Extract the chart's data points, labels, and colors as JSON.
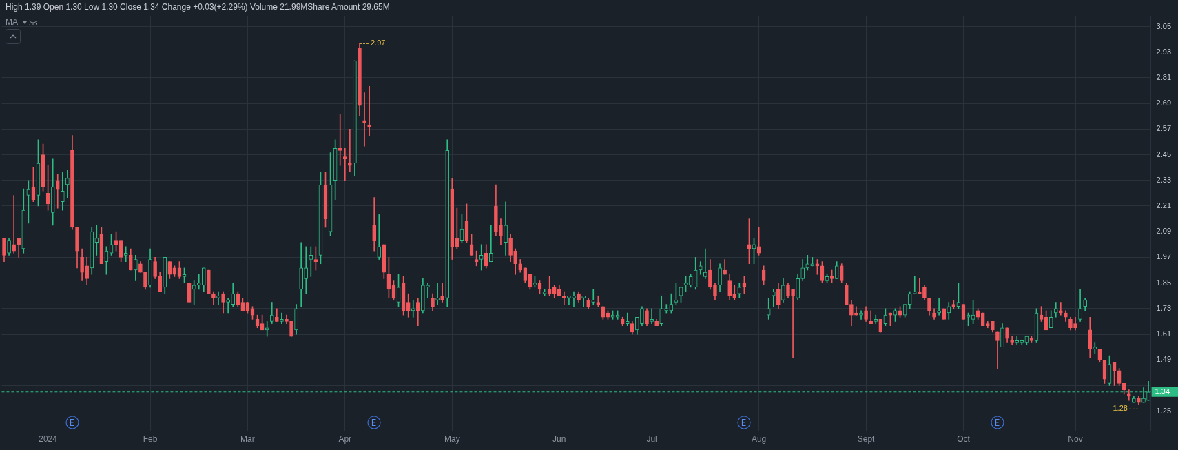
{
  "chart_data": {
    "type": "candlestick",
    "categories": [
      null,
      null,
      null,
      null,
      null,
      null,
      null,
      null,
      null,
      "2024",
      null,
      null,
      null,
      null,
      null,
      null,
      null,
      null,
      null,
      null,
      null,
      null,
      null,
      null,
      null,
      null,
      null,
      null,
      null,
      null,
      "Feb",
      null,
      null,
      null,
      null,
      null,
      null,
      null,
      null,
      null,
      null,
      null,
      null,
      null,
      null,
      null,
      null,
      null,
      null,
      null,
      "Mar",
      null,
      null,
      null,
      null,
      null,
      null,
      null,
      null,
      null,
      null,
      null,
      null,
      null,
      null,
      null,
      null,
      null,
      null,
      null,
      "Apr",
      null,
      null,
      null,
      null,
      null,
      null,
      null,
      null,
      null,
      null,
      null,
      null,
      null,
      null,
      null,
      null,
      null,
      null,
      null,
      null,
      null,
      "May",
      null,
      null,
      null,
      null,
      null,
      null,
      null,
      null,
      null,
      null,
      null,
      null,
      null,
      null,
      null,
      null,
      null,
      null,
      null,
      null,
      null,
      "Jun",
      null,
      null,
      null,
      null,
      null,
      null,
      null,
      null,
      null,
      null,
      null,
      null,
      null,
      null,
      null,
      null,
      null,
      null,
      "Jul",
      null,
      null,
      null,
      null,
      null,
      null,
      null,
      null,
      null,
      null,
      null,
      null,
      null,
      null,
      null,
      null,
      null,
      null,
      null,
      null,
      null,
      "Aug",
      null,
      null,
      null,
      null,
      null,
      null,
      null,
      null,
      null,
      null,
      null,
      null,
      null,
      null,
      null,
      null,
      null,
      null,
      null,
      null,
      null,
      "Sept",
      null,
      null,
      null,
      null,
      null,
      null,
      null,
      null,
      null,
      null,
      null,
      null,
      null,
      null,
      null,
      null,
      null,
      null,
      null,
      "Oct",
      null,
      null,
      null,
      null,
      null,
      null,
      null,
      null,
      null,
      null,
      null,
      null,
      null,
      null,
      null,
      null,
      null,
      null,
      null,
      null,
      null,
      null,
      "Nov",
      null,
      null,
      null,
      null,
      null,
      null,
      null,
      null,
      null,
      null,
      null,
      null,
      null,
      null,
      null
    ],
    "ohlc": [
      [
        2.06,
        2.06,
        1.95,
        1.98
      ],
      [
        1.99,
        2.06,
        1.98,
        2.05
      ],
      [
        2.03,
        2.26,
        1.99,
        2.0
      ],
      [
        2.06,
        2.06,
        1.97,
        2.03
      ],
      [
        2.01,
        2.29,
        1.99,
        2.19
      ],
      [
        2.26,
        2.33,
        2.13,
        2.29
      ],
      [
        2.3,
        2.39,
        2.23,
        2.24
      ],
      [
        2.26,
        2.52,
        2.21,
        2.41
      ],
      [
        2.45,
        2.5,
        2.28,
        2.3
      ],
      [
        2.27,
        2.4,
        2.19,
        2.22
      ],
      [
        2.18,
        2.43,
        2.12,
        2.3
      ],
      [
        2.33,
        2.36,
        2.2,
        2.29
      ],
      [
        2.23,
        2.37,
        2.19,
        2.28
      ],
      [
        2.31,
        2.38,
        2.25,
        2.34
      ],
      [
        2.47,
        2.54,
        2.1,
        2.11
      ],
      [
        2.11,
        2.11,
        1.92,
        2.0
      ],
      [
        1.97,
        2.01,
        1.86,
        1.9
      ],
      [
        1.93,
        1.97,
        1.84,
        1.87
      ],
      [
        1.92,
        2.11,
        1.89,
        2.09
      ],
      [
        2.04,
        2.12,
        1.98,
        2.06
      ],
      [
        2.08,
        2.11,
        1.94,
        1.94
      ],
      [
        1.95,
        2.02,
        1.89,
        2.0
      ],
      [
        1.99,
        2.08,
        1.98,
        2.03
      ],
      [
        2.05,
        2.09,
        2.0,
        2.03
      ],
      [
        2.05,
        2.05,
        1.95,
        1.97
      ],
      [
        1.98,
        2.02,
        1.95,
        1.99
      ],
      [
        1.98,
        2.01,
        1.91,
        1.91
      ],
      [
        1.91,
        1.98,
        1.86,
        1.96
      ],
      [
        1.94,
        1.95,
        1.9,
        1.9
      ],
      [
        1.9,
        1.9,
        1.82,
        1.83
      ],
      [
        1.84,
        2.01,
        1.83,
        1.96
      ],
      [
        1.95,
        1.97,
        1.87,
        1.88
      ],
      [
        1.88,
        1.9,
        1.81,
        1.81
      ],
      [
        1.83,
        1.97,
        1.8,
        1.97
      ],
      [
        1.95,
        1.95,
        1.87,
        1.89
      ],
      [
        1.92,
        1.93,
        1.88,
        1.89
      ],
      [
        1.92,
        1.95,
        1.87,
        1.88
      ],
      [
        1.88,
        1.92,
        1.85,
        1.89
      ],
      [
        1.85,
        1.85,
        1.76,
        1.76
      ],
      [
        1.82,
        1.86,
        1.75,
        1.84
      ],
      [
        1.84,
        1.89,
        1.82,
        1.85
      ],
      [
        1.84,
        1.92,
        1.81,
        1.92
      ],
      [
        1.91,
        1.91,
        1.8,
        1.8
      ],
      [
        1.8,
        1.81,
        1.75,
        1.78
      ],
      [
        1.78,
        1.81,
        1.75,
        1.79
      ],
      [
        1.8,
        1.81,
        1.71,
        1.76
      ],
      [
        1.76,
        1.78,
        1.71,
        1.77
      ],
      [
        1.75,
        1.85,
        1.74,
        1.8
      ],
      [
        1.8,
        1.81,
        1.74,
        1.75
      ],
      [
        1.76,
        1.78,
        1.72,
        1.72
      ],
      [
        1.76,
        1.76,
        1.71,
        1.72
      ],
      [
        1.73,
        1.74,
        1.68,
        1.7
      ],
      [
        1.68,
        1.7,
        1.64,
        1.65
      ],
      [
        1.66,
        1.7,
        1.63,
        1.63
      ],
      [
        1.63,
        1.67,
        1.6,
        1.64
      ],
      [
        1.67,
        1.76,
        1.66,
        1.7
      ],
      [
        1.69,
        1.73,
        1.67,
        1.67
      ],
      [
        1.67,
        1.71,
        1.66,
        1.68
      ],
      [
        1.68,
        1.7,
        1.66,
        1.67
      ],
      [
        1.67,
        1.67,
        1.6,
        1.6
      ],
      [
        1.63,
        1.75,
        1.61,
        1.73
      ],
      [
        1.82,
        2.04,
        1.74,
        1.92
      ],
      [
        1.87,
        2.02,
        1.8,
        1.92
      ],
      [
        1.96,
        2.02,
        1.88,
        1.98
      ],
      [
        1.96,
        2.02,
        1.91,
        1.95
      ],
      [
        1.98,
        2.37,
        1.94,
        2.31
      ],
      [
        2.31,
        2.37,
        2.11,
        2.15
      ],
      [
        2.09,
        2.46,
        2.07,
        2.31
      ],
      [
        2.33,
        2.52,
        2.24,
        2.48
      ],
      [
        2.48,
        2.64,
        2.4,
        2.47
      ],
      [
        2.44,
        2.48,
        2.33,
        2.43
      ],
      [
        2.41,
        2.57,
        2.37,
        2.4
      ],
      [
        2.41,
        2.89,
        2.35,
        2.89
      ],
      [
        2.95,
        2.97,
        2.63,
        2.68
      ],
      [
        2.61,
        2.74,
        2.49,
        2.6
      ],
      [
        2.59,
        2.77,
        2.54,
        2.58
      ],
      [
        2.12,
        2.25,
        2.0,
        2.05
      ],
      [
        1.97,
        2.17,
        1.96,
        2.02
      ],
      [
        2.03,
        2.03,
        1.87,
        1.9
      ],
      [
        1.89,
        1.97,
        1.78,
        1.82
      ],
      [
        1.84,
        1.86,
        1.77,
        1.78
      ],
      [
        1.76,
        1.89,
        1.74,
        1.83
      ],
      [
        1.85,
        1.88,
        1.7,
        1.72
      ],
      [
        1.76,
        1.8,
        1.69,
        1.72
      ],
      [
        1.72,
        1.77,
        1.69,
        1.73
      ],
      [
        1.76,
        1.78,
        1.65,
        1.72
      ],
      [
        1.72,
        1.87,
        1.71,
        1.84
      ],
      [
        1.83,
        1.85,
        1.78,
        1.84
      ],
      [
        1.78,
        1.8,
        1.72,
        1.74
      ],
      [
        1.77,
        1.85,
        1.75,
        1.78
      ],
      [
        1.79,
        1.85,
        1.76,
        1.77
      ],
      [
        1.78,
        2.52,
        1.74,
        2.47
      ],
      [
        2.29,
        2.34,
        1.96,
        2.02
      ],
      [
        2.06,
        2.2,
        2.01,
        2.02
      ],
      [
        2.05,
        2.17,
        2.04,
        2.1
      ],
      [
        2.14,
        2.22,
        2.04,
        2.05
      ],
      [
        2.03,
        2.08,
        1.98,
        1.98
      ],
      [
        1.96,
        2.0,
        1.93,
        1.95
      ],
      [
        1.96,
        2.03,
        1.91,
        1.98
      ],
      [
        1.99,
        2.03,
        1.92,
        1.93
      ],
      [
        1.95,
        2.12,
        1.95,
        1.99
      ],
      [
        2.21,
        2.31,
        2.07,
        2.09
      ],
      [
        2.12,
        2.15,
        2.03,
        2.07
      ],
      [
        2.04,
        2.23,
        1.98,
        2.12
      ],
      [
        2.06,
        2.08,
        1.95,
        1.98
      ],
      [
        2.0,
        2.01,
        1.89,
        1.94
      ],
      [
        1.94,
        1.96,
        1.9,
        1.91
      ],
      [
        1.92,
        1.92,
        1.85,
        1.86
      ],
      [
        1.89,
        1.89,
        1.82,
        1.83
      ],
      [
        1.84,
        1.88,
        1.83,
        1.85
      ],
      [
        1.85,
        1.86,
        1.8,
        1.82
      ],
      [
        1.8,
        1.82,
        1.79,
        1.81
      ],
      [
        1.82,
        1.88,
        1.79,
        1.8
      ],
      [
        1.83,
        1.84,
        1.78,
        1.8
      ],
      [
        1.82,
        1.84,
        1.79,
        1.79
      ],
      [
        1.79,
        1.81,
        1.75,
        1.78
      ],
      [
        1.78,
        1.79,
        1.75,
        1.79
      ],
      [
        1.78,
        1.81,
        1.74,
        1.79
      ],
      [
        1.8,
        1.81,
        1.76,
        1.77
      ],
      [
        1.78,
        1.79,
        1.74,
        1.79
      ],
      [
        1.77,
        1.78,
        1.73,
        1.74
      ],
      [
        1.76,
        1.82,
        1.75,
        1.77
      ],
      [
        1.76,
        1.79,
        1.74,
        1.75
      ],
      [
        1.74,
        1.74,
        1.68,
        1.69
      ],
      [
        1.71,
        1.72,
        1.68,
        1.69
      ],
      [
        1.69,
        1.72,
        1.68,
        1.7
      ],
      [
        1.69,
        1.72,
        1.68,
        1.7
      ],
      [
        1.68,
        1.69,
        1.65,
        1.66
      ],
      [
        1.66,
        1.71,
        1.65,
        1.67
      ],
      [
        1.66,
        1.67,
        1.61,
        1.62
      ],
      [
        1.63,
        1.69,
        1.61,
        1.69
      ],
      [
        1.66,
        1.74,
        1.65,
        1.73
      ],
      [
        1.72,
        1.73,
        1.65,
        1.66
      ],
      [
        1.67,
        1.73,
        1.66,
        1.68
      ],
      [
        1.67,
        1.68,
        1.65,
        1.65
      ],
      [
        1.66,
        1.79,
        1.65,
        1.73
      ],
      [
        1.72,
        1.75,
        1.71,
        1.73
      ],
      [
        1.72,
        1.8,
        1.71,
        1.75
      ],
      [
        1.76,
        1.85,
        1.75,
        1.77
      ],
      [
        1.79,
        1.83,
        1.76,
        1.83
      ],
      [
        1.84,
        1.88,
        1.81,
        1.85
      ],
      [
        1.84,
        1.89,
        1.83,
        1.88
      ],
      [
        1.83,
        1.97,
        1.82,
        1.91
      ],
      [
        1.91,
        1.95,
        1.89,
        1.93
      ],
      [
        1.88,
        2.01,
        1.87,
        1.9
      ],
      [
        1.91,
        1.96,
        1.82,
        1.83
      ],
      [
        1.84,
        1.85,
        1.77,
        1.79
      ],
      [
        1.84,
        1.94,
        1.81,
        1.92
      ],
      [
        1.91,
        1.96,
        1.89,
        1.89
      ],
      [
        1.86,
        1.89,
        1.77,
        1.79
      ],
      [
        1.8,
        1.84,
        1.77,
        1.78
      ],
      [
        1.8,
        1.85,
        1.78,
        1.83
      ],
      [
        1.85,
        1.88,
        1.8,
        1.83
      ],
      [
        2.03,
        2.15,
        1.94,
        2.01
      ],
      [
        2.01,
        2.06,
        1.94,
        2.03
      ],
      [
        2.02,
        2.11,
        1.98,
        1.99
      ],
      [
        1.91,
        1.93,
        1.84,
        1.86
      ],
      [
        1.7,
        1.78,
        1.68,
        1.73
      ],
      [
        1.79,
        1.82,
        1.74,
        1.81
      ],
      [
        1.82,
        1.85,
        1.73,
        1.75
      ],
      [
        1.77,
        1.87,
        1.76,
        1.84
      ],
      [
        1.84,
        1.85,
        1.78,
        1.79
      ],
      [
        1.82,
        1.82,
        1.5,
        1.79
      ],
      [
        1.78,
        1.89,
        1.77,
        1.87
      ],
      [
        1.87,
        1.96,
        1.86,
        1.92
      ],
      [
        1.92,
        1.98,
        1.91,
        1.94
      ],
      [
        1.93,
        1.97,
        1.93,
        1.94
      ],
      [
        1.94,
        1.96,
        1.89,
        1.93
      ],
      [
        1.93,
        1.95,
        1.85,
        1.86
      ],
      [
        1.86,
        1.89,
        1.85,
        1.88
      ],
      [
        1.88,
        1.91,
        1.85,
        1.87
      ],
      [
        1.87,
        1.95,
        1.87,
        1.93
      ],
      [
        1.93,
        1.94,
        1.85,
        1.86
      ],
      [
        1.84,
        1.85,
        1.75,
        1.75
      ],
      [
        1.75,
        1.77,
        1.65,
        1.7
      ],
      [
        1.71,
        1.74,
        1.7,
        1.7
      ],
      [
        1.7,
        1.72,
        1.68,
        1.71
      ],
      [
        1.72,
        1.74,
        1.67,
        1.68
      ],
      [
        1.67,
        1.72,
        1.66,
        1.66
      ],
      [
        1.67,
        1.7,
        1.66,
        1.68
      ],
      [
        1.68,
        1.68,
        1.62,
        1.62
      ],
      [
        1.66,
        1.73,
        1.65,
        1.7
      ],
      [
        1.71,
        1.71,
        1.65,
        1.7
      ],
      [
        1.7,
        1.73,
        1.67,
        1.72
      ],
      [
        1.72,
        1.74,
        1.69,
        1.7
      ],
      [
        1.7,
        1.75,
        1.69,
        1.75
      ],
      [
        1.75,
        1.81,
        1.73,
        1.8
      ],
      [
        1.8,
        1.88,
        1.8,
        1.81
      ],
      [
        1.81,
        1.87,
        1.8,
        1.8
      ],
      [
        1.83,
        1.84,
        1.77,
        1.78
      ],
      [
        1.78,
        1.78,
        1.7,
        1.72
      ],
      [
        1.71,
        1.73,
        1.68,
        1.69
      ],
      [
        1.71,
        1.78,
        1.7,
        1.72
      ],
      [
        1.73,
        1.73,
        1.68,
        1.68
      ],
      [
        1.71,
        1.76,
        1.68,
        1.74
      ],
      [
        1.75,
        1.77,
        1.73,
        1.74
      ],
      [
        1.74,
        1.85,
        1.73,
        1.76
      ],
      [
        1.75,
        1.75,
        1.68,
        1.68
      ],
      [
        1.69,
        1.71,
        1.65,
        1.7
      ],
      [
        1.68,
        1.77,
        1.66,
        1.7
      ],
      [
        1.72,
        1.73,
        1.68,
        1.69
      ],
      [
        1.71,
        1.71,
        1.65,
        1.65
      ],
      [
        1.66,
        1.67,
        1.64,
        1.65
      ],
      [
        1.67,
        1.67,
        1.62,
        1.63
      ],
      [
        1.62,
        1.62,
        1.45,
        1.58
      ],
      [
        1.55,
        1.66,
        1.55,
        1.64
      ],
      [
        1.64,
        1.64,
        1.57,
        1.59
      ],
      [
        1.58,
        1.6,
        1.56,
        1.57
      ],
      [
        1.57,
        1.6,
        1.56,
        1.58
      ],
      [
        1.57,
        1.58,
        1.56,
        1.58
      ],
      [
        1.57,
        1.6,
        1.56,
        1.6
      ],
      [
        1.59,
        1.6,
        1.57,
        1.58
      ],
      [
        1.58,
        1.73,
        1.57,
        1.71
      ],
      [
        1.7,
        1.74,
        1.67,
        1.68
      ],
      [
        1.69,
        1.72,
        1.63,
        1.63
      ],
      [
        1.64,
        1.72,
        1.64,
        1.69
      ],
      [
        1.71,
        1.76,
        1.69,
        1.73
      ],
      [
        1.72,
        1.76,
        1.7,
        1.71
      ],
      [
        1.71,
        1.72,
        1.67,
        1.69
      ],
      [
        1.68,
        1.69,
        1.63,
        1.64
      ],
      [
        1.66,
        1.69,
        1.63,
        1.64
      ],
      [
        1.68,
        1.82,
        1.67,
        1.73
      ],
      [
        1.74,
        1.78,
        1.72,
        1.77
      ],
      [
        1.63,
        1.69,
        1.5,
        1.54
      ],
      [
        1.54,
        1.57,
        1.52,
        1.55
      ],
      [
        1.54,
        1.54,
        1.48,
        1.49
      ],
      [
        1.49,
        1.49,
        1.38,
        1.4
      ],
      [
        1.38,
        1.51,
        1.37,
        1.47
      ],
      [
        1.48,
        1.48,
        1.37,
        1.44
      ],
      [
        1.44,
        1.45,
        1.37,
        1.38
      ],
      [
        1.38,
        1.38,
        1.33,
        1.35
      ],
      [
        1.33,
        1.35,
        1.3,
        1.32
      ],
      [
        1.29,
        1.32,
        1.29,
        1.31
      ],
      [
        1.31,
        1.32,
        1.28,
        1.29
      ],
      [
        1.29,
        1.36,
        1.29,
        1.31
      ],
      [
        1.3,
        1.39,
        1.3,
        1.34
      ]
    ],
    "colors": [
      "#f0585c",
      "#2ebd85",
      "#f0585c",
      "#f0585c",
      "#2ebd85",
      "#2ebd85",
      "#f0585c",
      "#2ebd85",
      "#f0585c",
      "#f0585c",
      "#2ebd85",
      "#f0585c",
      "#2ebd85",
      "#2ebd85",
      "#f0585c",
      "#f0585c",
      "#f0585c",
      "#f0585c",
      "#2ebd85",
      "#2ebd85",
      "#f0585c",
      "#2ebd85",
      "#2ebd85",
      "#f0585c",
      "#f0585c",
      "#2ebd85",
      "#f0585c",
      "#2ebd85",
      "#f0585c",
      "#f0585c",
      "#2ebd85",
      "#f0585c",
      "#f0585c",
      "#2ebd85",
      "#f0585c",
      "#f0585c",
      "#f0585c",
      "#2ebd85",
      "#f0585c",
      "#2ebd85",
      "#2ebd85",
      "#2ebd85",
      "#f0585c",
      "#f0585c",
      "#2ebd85",
      "#f0585c",
      "#2ebd85",
      "#2ebd85",
      "#f0585c",
      "#f0585c",
      "#f0585c",
      "#f0585c",
      "#f0585c",
      "#f0585c",
      "#2ebd85",
      "#2ebd85",
      "#f0585c",
      "#2ebd85",
      "#f0585c",
      "#f0585c",
      "#2ebd85",
      "#2ebd85",
      "#2ebd85",
      "#2ebd85",
      "#f0585c",
      "#2ebd85",
      "#f0585c",
      "#2ebd85",
      "#2ebd85",
      "#f0585c",
      "#f0585c",
      "#f0585c",
      "#2ebd85",
      "#f0585c",
      "#f0585c",
      "#f0585c",
      "#f0585c",
      "#2ebd85",
      "#f0585c",
      "#f0585c",
      "#f0585c",
      "#2ebd85",
      "#f0585c",
      "#f0585c",
      "#2ebd85",
      "#f0585c",
      "#2ebd85",
      "#2ebd85",
      "#f0585c",
      "#2ebd85",
      "#f0585c",
      "#2ebd85",
      "#f0585c",
      "#f0585c",
      "#2ebd85",
      "#f0585c",
      "#f0585c",
      "#f0585c",
      "#2ebd85",
      "#f0585c",
      "#2ebd85",
      "#f0585c",
      "#f0585c",
      "#2ebd85",
      "#f0585c",
      "#f0585c",
      "#f0585c",
      "#f0585c",
      "#f0585c",
      "#2ebd85",
      "#f0585c",
      "#2ebd85",
      "#f0585c",
      "#f0585c",
      "#f0585c",
      "#f0585c",
      "#2ebd85",
      "#2ebd85",
      "#f0585c",
      "#2ebd85",
      "#f0585c",
      "#2ebd85",
      "#f0585c",
      "#f0585c",
      "#f0585c",
      "#2ebd85",
      "#2ebd85",
      "#f0585c",
      "#2ebd85",
      "#f0585c",
      "#2ebd85",
      "#2ebd85",
      "#f0585c",
      "#2ebd85",
      "#f0585c",
      "#2ebd85",
      "#2ebd85",
      "#2ebd85",
      "#2ebd85",
      "#2ebd85",
      "#2ebd85",
      "#2ebd85",
      "#2ebd85",
      "#2ebd85",
      "#2ebd85",
      "#f0585c",
      "#f0585c",
      "#2ebd85",
      "#f0585c",
      "#f0585c",
      "#f0585c",
      "#2ebd85",
      "#f0585c",
      "#f0585c",
      "#2ebd85",
      "#f0585c",
      "#f0585c",
      "#2ebd85",
      "#2ebd85",
      "#f0585c",
      "#2ebd85",
      "#f0585c",
      "#f0585c",
      "#2ebd85",
      "#2ebd85",
      "#2ebd85",
      "#2ebd85",
      "#f0585c",
      "#f0585c",
      "#2ebd85",
      "#f0585c",
      "#2ebd85",
      "#f0585c",
      "#f0585c",
      "#f0585c",
      "#f0585c",
      "#2ebd85",
      "#f0585c",
      "#f0585c",
      "#2ebd85",
      "#f0585c",
      "#2ebd85",
      "#f0585c",
      "#2ebd85",
      "#f0585c",
      "#2ebd85",
      "#2ebd85",
      "#2ebd85",
      "#f0585c",
      "#f0585c",
      "#f0585c",
      "#f0585c",
      "#2ebd85",
      "#f0585c",
      "#2ebd85",
      "#f0585c",
      "#2ebd85",
      "#f0585c",
      "#2ebd85",
      "#2ebd85",
      "#f0585c",
      "#f0585c",
      "#f0585c",
      "#f0585c",
      "#f0585c",
      "#2ebd85",
      "#f0585c",
      "#f0585c",
      "#2ebd85",
      "#2ebd85",
      "#2ebd85",
      "#f0585c",
      "#2ebd85",
      "#f0585c",
      "#f0585c",
      "#2ebd85",
      "#2ebd85",
      "#f0585c",
      "#f0585c",
      "#f0585c",
      "#f0585c",
      "#2ebd85",
      "#2ebd85",
      "#f0585c",
      "#2ebd85",
      "#f0585c",
      "#f0585c",
      "#2ebd85",
      "#f0585c",
      "#f0585c",
      "#f0585c",
      "#f0585c",
      "#2ebd85",
      "#f0585c",
      "#2ebd85",
      "#2ebd85"
    ],
    "ylim": [
      1.16,
      3.1
    ],
    "yticks": [
      1.25,
      {
        "value": 1.37,
        "label": null
      },
      1.49,
      1.61,
      1.73,
      1.85,
      1.97,
      2.09,
      2.21,
      2.33,
      2.45,
      2.57,
      2.69,
      2.81,
      2.93,
      3.05
    ],
    "grid": true,
    "ref_lines": [
      {
        "axis": "y",
        "value": 1.34,
        "label": "1.34",
        "color": "#2ebd85",
        "line_style": "dashed"
      }
    ],
    "annotations": [
      "High 1.39 Open 1.30 Low 1.30 Close 1.34 Change +0.03(+2.29%) Volume 21.99MShare Amount 29.65M",
      "MA",
      "2.97",
      "1.28"
    ]
  }
}
